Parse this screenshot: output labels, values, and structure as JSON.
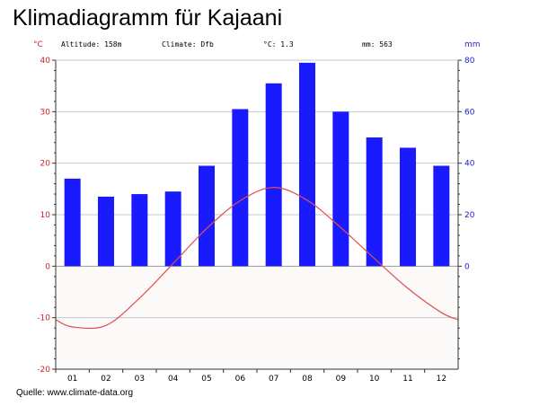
{
  "page": {
    "title": "Klimadiagramm für Kajaani",
    "source": "Quelle: www.climate-data.org"
  },
  "header": {
    "left_unit": "°C",
    "altitude": "Altitude: 158m",
    "climate": "Climate: Dfb",
    "avg_temp": "°C: 1.3",
    "precip": "mm: 563",
    "right_unit": "mm"
  },
  "colors": {
    "bar": "#1a1aff",
    "line": "#e05050",
    "left_axis_text": "#cc2222",
    "right_axis_text": "#2222cc",
    "grid": "#c8c8c8",
    "frame": "#333333"
  },
  "chart_data": {
    "type": "bar",
    "categories": [
      "01",
      "02",
      "03",
      "04",
      "05",
      "06",
      "07",
      "08",
      "09",
      "10",
      "11",
      "12"
    ],
    "series": [
      {
        "kind": "bar",
        "axis": "right",
        "unit": "mm",
        "values": [
          34,
          27,
          28,
          29,
          39,
          61,
          71,
          79,
          60,
          50,
          46,
          39
        ]
      },
      {
        "kind": "line",
        "axis": "left",
        "unit": "°C",
        "values": [
          -11.8,
          -11.5,
          -6.2,
          0.5,
          7.3,
          12.7,
          15.3,
          12.8,
          7.5,
          1.5,
          -4.3,
          -9.0
        ]
      }
    ],
    "left_axis": {
      "label": "°C",
      "ticks": [
        40,
        30,
        20,
        10,
        0,
        -10,
        -20
      ],
      "ylim": [
        -20,
        40
      ]
    },
    "right_axis": {
      "label": "mm",
      "ticks": [
        80,
        60,
        40,
        20,
        0
      ],
      "ylim": [
        -40,
        80
      ]
    },
    "grid": true
  }
}
